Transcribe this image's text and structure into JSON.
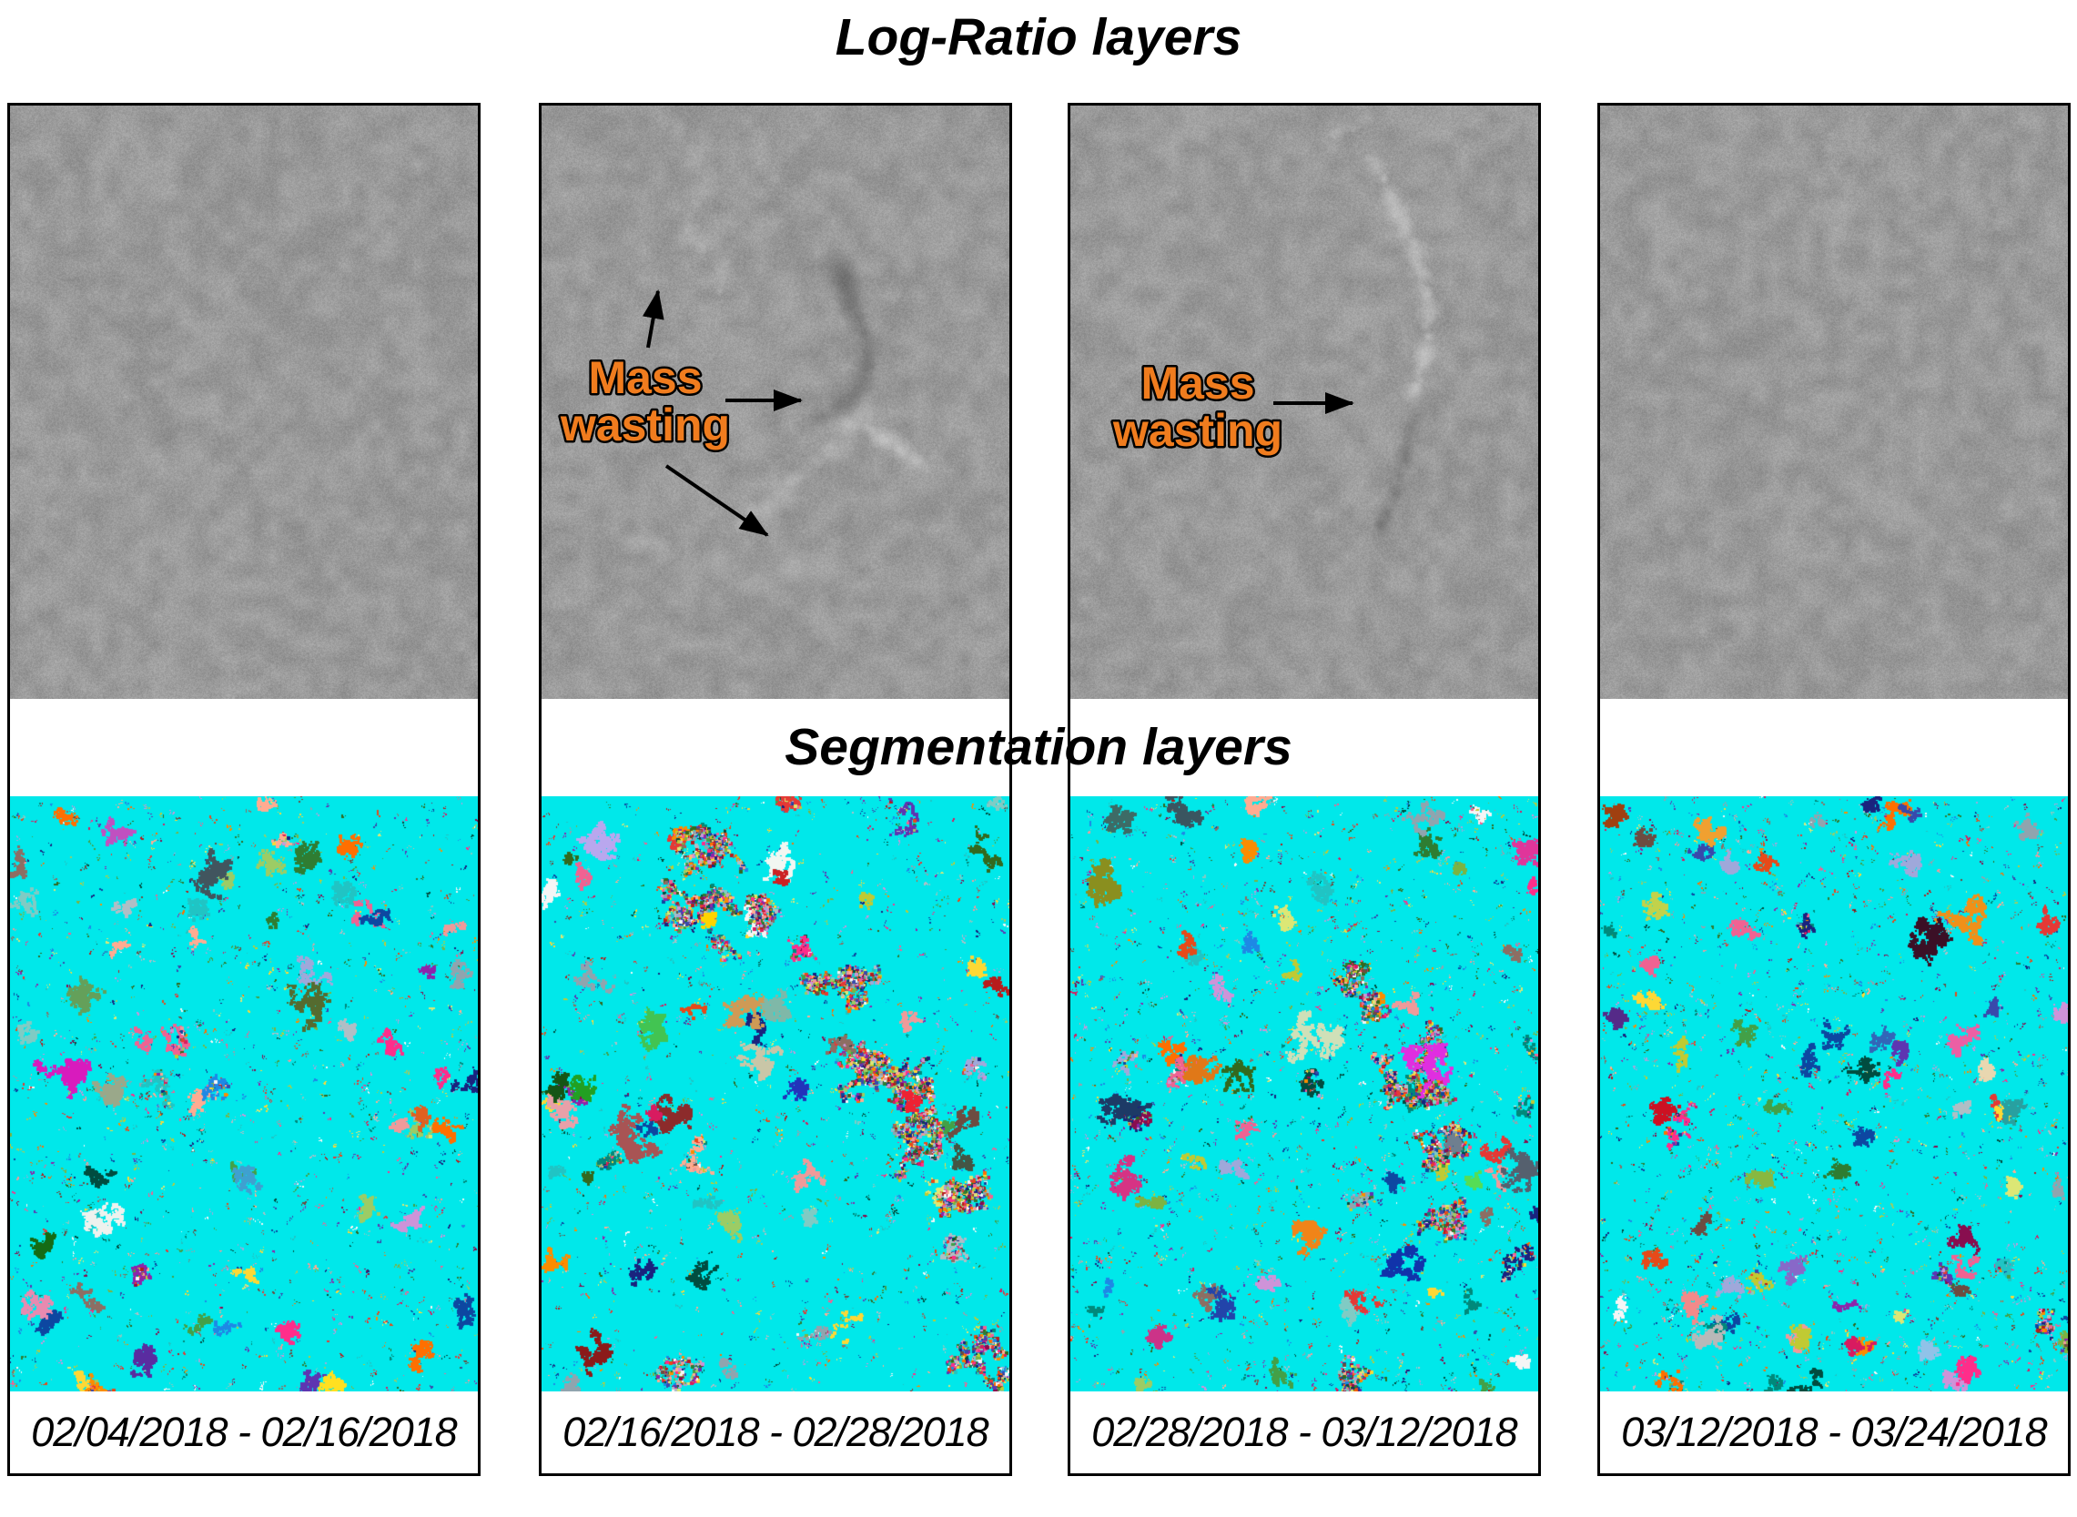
{
  "titles": {
    "log_ratio": "Log-Ratio layers",
    "segmentation": "Segmentation layers"
  },
  "annotations": {
    "mass_wasting": {
      "label": "Mass wasting",
      "line1": "Mass",
      "line2": "wasting",
      "text_color": "#f07c1e",
      "outline_color": "#000000"
    }
  },
  "panels": [
    {
      "id": 1,
      "date_range": "02/04/2018 - 02/16/2018",
      "has_mass_wasting_label": false,
      "arrow_count": 0
    },
    {
      "id": 2,
      "date_range": "02/16/2018 - 02/28/2018",
      "has_mass_wasting_label": true,
      "arrow_count": 3
    },
    {
      "id": 3,
      "date_range": "02/28/2018 - 03/12/2018",
      "has_mass_wasting_label": true,
      "arrow_count": 1
    },
    {
      "id": 4,
      "date_range": "03/12/2018 - 03/24/2018",
      "has_mass_wasting_label": false,
      "arrow_count": 0
    }
  ],
  "colors": {
    "page_bg": "#ffffff",
    "panel_border": "#000000",
    "log_ratio_gray": "#9a9a9a",
    "segmentation_bg": "#00e8ea",
    "date_text": "#000000",
    "segment_palette": [
      "#e53935",
      "#8e24aa",
      "#3949ab",
      "#1e88e5",
      "#43a047",
      "#7cb342",
      "#fdd835",
      "#fb8c00",
      "#f06292",
      "#8d6e63",
      "#90a4ae",
      "#00897b",
      "#d81b60",
      "#5e35b1",
      "#c0ca33",
      "#6d4c41",
      "#e64a19",
      "#1a237e",
      "#004d40",
      "#f5f5f5",
      "#9ccc65",
      "#ce93d8",
      "#ffab91",
      "#b0bec5",
      "#2e7d32",
      "#b71c1c",
      "#880e4f",
      "#0d47a1",
      "#33691e",
      "#ff6f00",
      "#dce775",
      "#80cbc4",
      "#ef9a9a",
      "#9fa8da",
      "#ff2d8a",
      "#20c4c4"
    ]
  }
}
